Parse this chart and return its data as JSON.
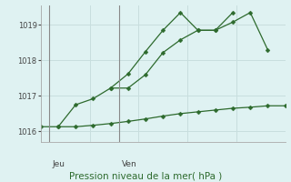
{
  "background_color": "#dff2f2",
  "grid_color": "#c8dede",
  "line_color": "#2d6a2d",
  "title": "Pression niveau de la mer( hPa )",
  "ylim": [
    1015.7,
    1019.55
  ],
  "yticks": [
    1016,
    1017,
    1018,
    1019
  ],
  "xlim": [
    0,
    14
  ],
  "jeu_x": 0.5,
  "ven_x": 4.5,
  "line1_x": [
    0,
    1,
    2,
    3,
    4,
    5,
    6,
    7,
    8,
    9,
    10,
    11,
    12,
    13,
    14
  ],
  "line1_y": [
    1016.13,
    1016.13,
    1016.13,
    1016.17,
    1016.22,
    1016.28,
    1016.35,
    1016.43,
    1016.5,
    1016.55,
    1016.6,
    1016.65,
    1016.68,
    1016.72,
    1016.72
  ],
  "line2_x": [
    1,
    2,
    3,
    4,
    5,
    6,
    7,
    8,
    9,
    10,
    11,
    12,
    13
  ],
  "line2_y": [
    1016.13,
    1016.75,
    1016.92,
    1017.22,
    1017.22,
    1017.6,
    1018.22,
    1018.58,
    1018.85,
    1018.85,
    1019.08,
    1019.35,
    1018.3
  ],
  "line3_x": [
    4,
    5,
    6,
    7,
    8,
    9,
    10,
    11
  ],
  "line3_y": [
    1017.22,
    1017.62,
    1018.25,
    1018.85,
    1019.35,
    1018.85,
    1018.85,
    1019.35
  ],
  "fig_width": 3.2,
  "fig_height": 2.0,
  "dpi": 100
}
